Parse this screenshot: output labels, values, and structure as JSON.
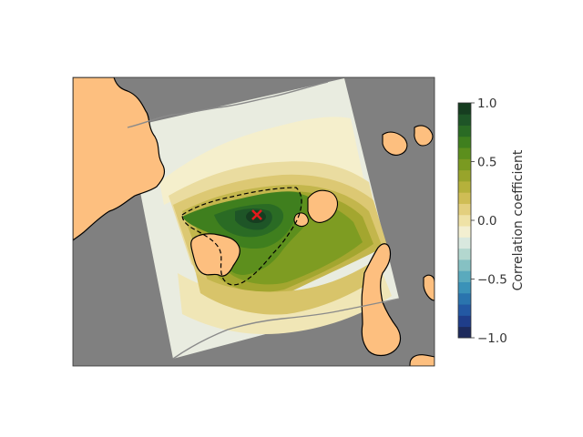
{
  "figure": {
    "colorbar": {
      "label": "Correlation coefficient",
      "range": [
        -1.0,
        1.0
      ],
      "tick_values": [
        -1.0,
        -0.5,
        0.0,
        0.5,
        1.0
      ],
      "tick_labels": [
        "−1.0",
        "−0.5",
        "0.0",
        "0.5",
        "1.0"
      ],
      "colors": [
        "#1d2a5c",
        "#1f3d8a",
        "#2358a3",
        "#2a74ae",
        "#3b92b8",
        "#5aaabd",
        "#86c1c3",
        "#b3d7cf",
        "#d9e8df",
        "#f3efd1",
        "#efe2a6",
        "#e3cf7e",
        "#cfbd55",
        "#b5b13b",
        "#98a42b",
        "#7a9a21",
        "#5c8f1d",
        "#3f7f1e",
        "#2a6b24",
        "#1e5527",
        "#163d20"
      ]
    },
    "map": {
      "ocean_color": "#808080",
      "land_color": "#fdbf7f",
      "contour_line": "dashed-black",
      "marker": {
        "symbol": "x",
        "color": "#e31a1c"
      }
    }
  }
}
